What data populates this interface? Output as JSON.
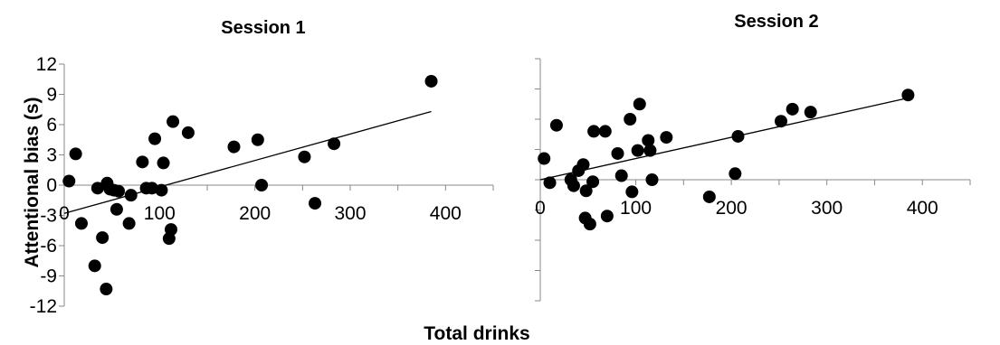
{
  "figure": {
    "xlabel": "Total drinks",
    "ylabel": "Attentional bias (s)"
  },
  "chart_data": [
    {
      "type": "scatter",
      "title": "Session 1",
      "xlabel": "Total drinks",
      "ylabel": "Attentional bias (s)",
      "xlim": [
        0,
        450
      ],
      "ylim": [
        -12,
        12
      ],
      "x_ticks": [
        "0",
        "100",
        "200",
        "300",
        "400"
      ],
      "y_ticks": [
        "12",
        "9",
        "6",
        "3",
        "0",
        "-3",
        "-6",
        "-9",
        "-12"
      ],
      "grid": false,
      "points": [
        {
          "x": 5,
          "y": 0.4
        },
        {
          "x": 12,
          "y": 3.1
        },
        {
          "x": 18,
          "y": -3.8
        },
        {
          "x": 32,
          "y": -8.0
        },
        {
          "x": 35,
          "y": -0.3
        },
        {
          "x": 40,
          "y": -5.2
        },
        {
          "x": 44,
          "y": -10.3
        },
        {
          "x": 45,
          "y": 0.2
        },
        {
          "x": 48,
          "y": -0.4
        },
        {
          "x": 52,
          "y": -0.5
        },
        {
          "x": 55,
          "y": -2.4
        },
        {
          "x": 57,
          "y": -0.6
        },
        {
          "x": 68,
          "y": -3.8
        },
        {
          "x": 70,
          "y": -1.0
        },
        {
          "x": 82,
          "y": 2.3
        },
        {
          "x": 86,
          "y": -0.3
        },
        {
          "x": 92,
          "y": -0.3
        },
        {
          "x": 95,
          "y": 4.6
        },
        {
          "x": 102,
          "y": -0.5
        },
        {
          "x": 104,
          "y": 2.2
        },
        {
          "x": 110,
          "y": -5.3
        },
        {
          "x": 112,
          "y": -4.4
        },
        {
          "x": 114,
          "y": 6.3
        },
        {
          "x": 130,
          "y": 5.2
        },
        {
          "x": 178,
          "y": 3.8
        },
        {
          "x": 203,
          "y": 4.5
        },
        {
          "x": 207,
          "y": 0.0
        },
        {
          "x": 252,
          "y": 2.8
        },
        {
          "x": 263,
          "y": -1.8
        },
        {
          "x": 283,
          "y": 4.1
        },
        {
          "x": 385,
          "y": 10.3
        }
      ],
      "trendline": {
        "x": [
          0,
          385
        ],
        "y": [
          -2.8,
          7.3
        ]
      }
    },
    {
      "type": "scatter",
      "title": "Session 2",
      "xlim": [
        0,
        450
      ],
      "ylim": [
        -12,
        12
      ],
      "x_ticks": [
        "0",
        "100",
        "200",
        "300",
        "400"
      ],
      "y_ticks": [],
      "grid": false,
      "points": [
        {
          "x": 4,
          "y": 2.1
        },
        {
          "x": 10,
          "y": -0.3
        },
        {
          "x": 17,
          "y": 5.4
        },
        {
          "x": 32,
          "y": 0.0
        },
        {
          "x": 35,
          "y": -0.6
        },
        {
          "x": 40,
          "y": 0.9
        },
        {
          "x": 45,
          "y": 1.5
        },
        {
          "x": 48,
          "y": -1.1
        },
        {
          "x": 47,
          "y": -3.8
        },
        {
          "x": 52,
          "y": -4.4
        },
        {
          "x": 55,
          "y": -0.2
        },
        {
          "x": 56,
          "y": 4.8
        },
        {
          "x": 68,
          "y": 4.8
        },
        {
          "x": 70,
          "y": -3.6
        },
        {
          "x": 81,
          "y": 2.6
        },
        {
          "x": 85,
          "y": 0.4
        },
        {
          "x": 94,
          "y": 6.0
        },
        {
          "x": 96,
          "y": -1.2
        },
        {
          "x": 102,
          "y": 2.9
        },
        {
          "x": 104,
          "y": 7.5
        },
        {
          "x": 113,
          "y": 3.9
        },
        {
          "x": 115,
          "y": 2.9
        },
        {
          "x": 117,
          "y": 0.0
        },
        {
          "x": 132,
          "y": 4.2
        },
        {
          "x": 177,
          "y": -1.7
        },
        {
          "x": 204,
          "y": 0.6
        },
        {
          "x": 207,
          "y": 4.3
        },
        {
          "x": 252,
          "y": 5.8
        },
        {
          "x": 264,
          "y": 7.0
        },
        {
          "x": 283,
          "y": 6.7
        },
        {
          "x": 385,
          "y": 8.4
        }
      ],
      "trendline": {
        "x": [
          0,
          385
        ],
        "y": [
          0.0,
          8.1
        ]
      }
    }
  ]
}
